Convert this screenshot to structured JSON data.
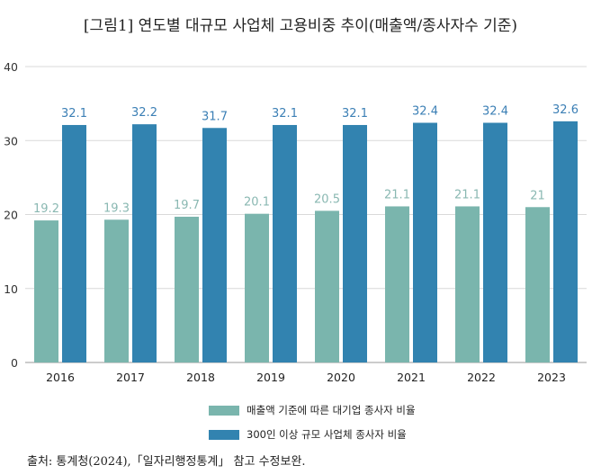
{
  "title": "[그림1] 연도별 대규모 사업체 고용비중 추이(매출액/종사자수 기준)",
  "source": "출처: 통계청(2024),「일자리행정통계」 참고 수정보완.",
  "colors": {
    "series1": "#7ab5ad",
    "series2": "#3283b0",
    "label1": "#8ab8b2",
    "label2": "#3b7fb5"
  },
  "chart_data": {
    "type": "bar",
    "categories": [
      "2016",
      "2017",
      "2018",
      "2019",
      "2020",
      "2021",
      "2022",
      "2023"
    ],
    "series": [
      {
        "name": "매출액 기준에 따른 대기업 종사자 비율",
        "values": [
          19.2,
          19.3,
          19.7,
          20.1,
          20.5,
          21.1,
          21.1,
          21
        ]
      },
      {
        "name": "300인 이상 규모 사업체 종사자 비율",
        "values": [
          32.1,
          32.2,
          31.7,
          32.1,
          32.1,
          32.4,
          32.4,
          32.6
        ]
      }
    ],
    "yticks": [
      0,
      10,
      20,
      30,
      40
    ],
    "ylim": [
      0,
      40
    ],
    "grid": true,
    "legend": "bottom"
  }
}
